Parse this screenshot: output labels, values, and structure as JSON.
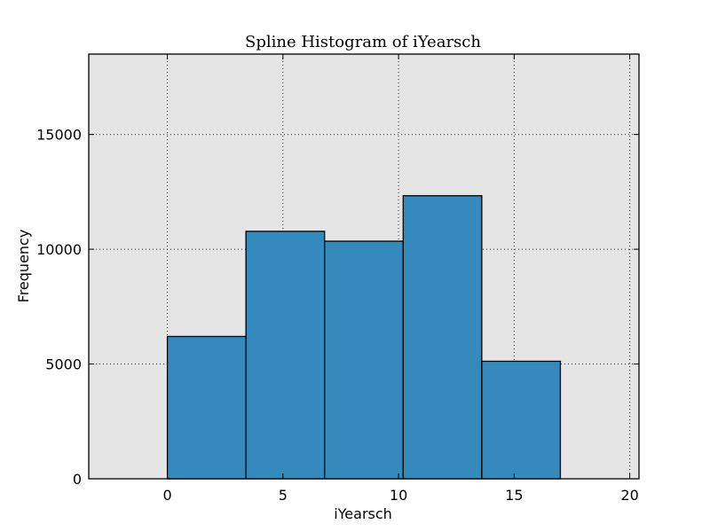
{
  "chart_data": {
    "type": "bar",
    "title": "Spline Histogram of iYearsch",
    "xlabel": "iYearsch",
    "ylabel": "Frequency",
    "xlim": [
      -3.4,
      20.4
    ],
    "ylim": [
      0,
      18500
    ],
    "x_ticks": [
      0,
      5,
      10,
      15,
      20
    ],
    "x_tick_labels": [
      "0",
      "5",
      "10",
      "15",
      "20"
    ],
    "y_ticks": [
      0,
      5000,
      10000,
      15000
    ],
    "y_tick_labels": [
      "0",
      "5000",
      "10000",
      "15000"
    ],
    "grid": true,
    "bins": [
      {
        "start": 0,
        "end": 3.4,
        "value": 6200
      },
      {
        "start": 3.4,
        "end": 6.8,
        "value": 10780
      },
      {
        "start": 6.8,
        "end": 10.2,
        "value": 10350
      },
      {
        "start": 10.2,
        "end": 13.6,
        "value": 12330
      },
      {
        "start": 13.6,
        "end": 17.0,
        "value": 5120
      }
    ],
    "bar_color": "#348abd",
    "bar_edge_color": "#000000",
    "background_color": "#e5e5e5"
  }
}
